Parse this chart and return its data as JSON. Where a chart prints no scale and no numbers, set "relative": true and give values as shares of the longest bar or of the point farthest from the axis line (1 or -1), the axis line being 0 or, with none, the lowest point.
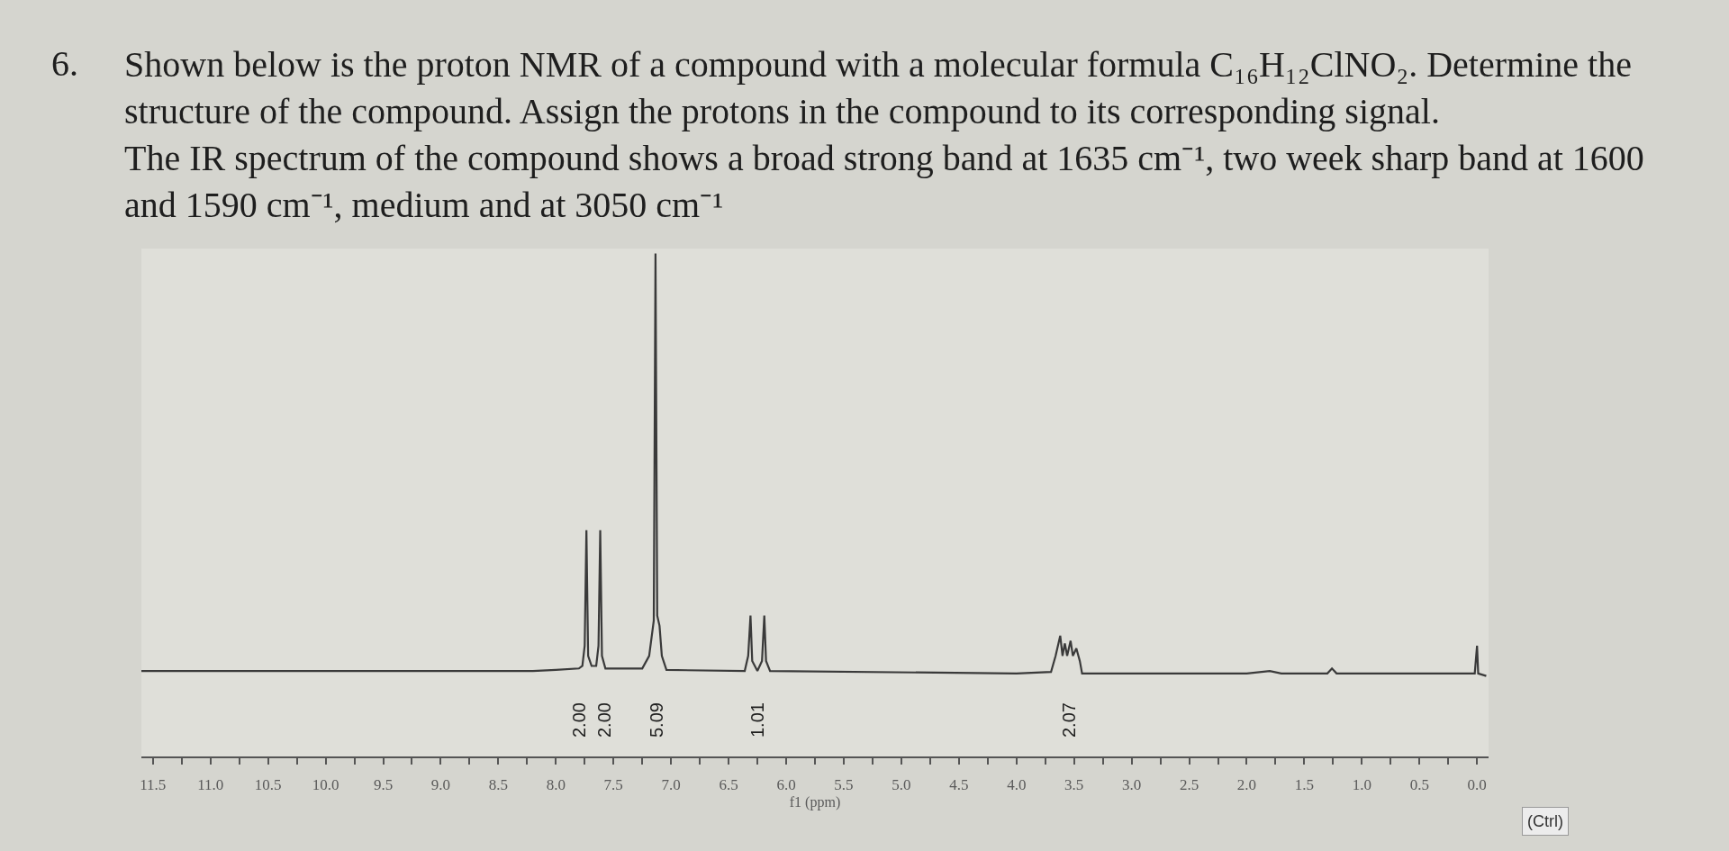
{
  "chart_data": {
    "type": "line",
    "title": "Shown below is the proton NMR of a compound with a molecular formula C₁₆H₁₂ClNO₂. Determine the\nstructure of the compound. Assign the protons in the compound to its corresponding signal.\nThe IR spectrum of the compound shows a broad strong band at 1635 cm⁻¹, two week sharp band at 1600\nand 1590 cm⁻¹, medium and at 3050 cm⁻¹",
    "xlabel": "f1 (ppm)",
    "annotations": [
      "6.",
      "2.00",
      "2.00",
      "5.09",
      "1.01",
      "2.07",
      "(Ctrl)"
    ],
    "relative": true,
    "color": "#3a3a3a",
    "x": [
      11.6,
      8.2,
      8.0,
      7.8,
      7.77,
      7.75,
      7.735,
      7.72,
      7.69,
      7.65,
      7.63,
      7.615,
      7.6,
      7.57,
      7.25,
      7.19,
      7.15,
      7.135,
      7.12,
      7.1,
      7.08,
      7.04,
      6.36,
      6.33,
      6.31,
      6.295,
      6.25,
      6.21,
      6.19,
      6.175,
      6.14,
      4.0,
      3.7,
      3.66,
      3.62,
      3.6,
      3.58,
      3.56,
      3.53,
      3.51,
      3.48,
      3.45,
      3.43,
      2.0,
      1.8,
      1.7,
      1.3,
      1.26,
      1.22,
      0.1,
      0.02,
      0.0,
      -0.01,
      -0.08
    ],
    "values": [
      0.17,
      0.17,
      0.172,
      0.175,
      0.18,
      0.22,
      0.45,
      0.2,
      0.18,
      0.18,
      0.22,
      0.45,
      0.2,
      0.175,
      0.175,
      0.2,
      0.27,
      1.0,
      0.28,
      0.26,
      0.2,
      0.172,
      0.17,
      0.2,
      0.28,
      0.19,
      0.17,
      0.19,
      0.28,
      0.19,
      0.17,
      0.165,
      0.168,
      0.2,
      0.24,
      0.2,
      0.225,
      0.2,
      0.23,
      0.2,
      0.215,
      0.19,
      0.165,
      0.165,
      0.17,
      0.165,
      0.165,
      0.175,
      0.165,
      0.165,
      0.165,
      0.22,
      0.165,
      0.16
    ],
    "xlim": [
      11.6,
      -0.1
    ],
    "xticks": [
      {
        "value": 11.5,
        "label": "11.5"
      },
      {
        "value": 11.25,
        "label": null
      },
      {
        "value": 11,
        "label": "11.0"
      },
      {
        "value": 10.75,
        "label": null
      },
      {
        "value": 10.5,
        "label": "10.5"
      },
      {
        "value": 10.25,
        "label": null
      },
      {
        "value": 10,
        "label": "10.0"
      },
      {
        "value": 9.75,
        "label": null
      },
      {
        "value": 9.5,
        "label": "9.5"
      },
      {
        "value": 9.25,
        "label": null
      },
      {
        "value": 9,
        "label": "9.0"
      },
      {
        "value": 8.75,
        "label": null
      },
      {
        "value": 8.5,
        "label": "8.5"
      },
      {
        "value": 8.25,
        "label": null
      },
      {
        "value": 8,
        "label": "8.0"
      },
      {
        "value": 7.75,
        "label": null
      },
      {
        "value": 7.5,
        "label": "7.5"
      },
      {
        "value": 7.25,
        "label": null
      },
      {
        "value": 7,
        "label": "7.0"
      },
      {
        "value": 6.75,
        "label": null
      },
      {
        "value": 6.5,
        "label": "6.5"
      },
      {
        "value": 6.25,
        "label": null
      },
      {
        "value": 6,
        "label": "6.0"
      },
      {
        "value": 5.75,
        "label": null
      },
      {
        "value": 5.5,
        "label": "5.5"
      },
      {
        "value": 5.25,
        "label": null
      },
      {
        "value": 5,
        "label": "5.0"
      },
      {
        "value": 4.75,
        "label": null
      },
      {
        "value": 4.5,
        "label": "4.5"
      },
      {
        "value": 4.25,
        "label": null
      },
      {
        "value": 4,
        "label": "4.0"
      },
      {
        "value": 3.75,
        "label": null
      },
      {
        "value": 3.5,
        "label": "3.5"
      },
      {
        "value": 3.25,
        "label": null
      },
      {
        "value": 3,
        "label": "3.0"
      },
      {
        "value": 2.75,
        "label": null
      },
      {
        "value": 2.5,
        "label": "2.5"
      },
      {
        "value": 2.25,
        "label": null
      },
      {
        "value": 2,
        "label": "2.0"
      },
      {
        "value": 1.75,
        "label": null
      },
      {
        "value": 1.5,
        "label": "1.5"
      },
      {
        "value": 1.25,
        "label": null
      },
      {
        "value": 1,
        "label": "1.0"
      },
      {
        "value": 0.75,
        "label": null
      },
      {
        "value": 0.5,
        "label": "0.5"
      },
      {
        "value": 0.25,
        "label": null
      },
      {
        "value": 0,
        "label": "0.0"
      }
    ]
  }
}
